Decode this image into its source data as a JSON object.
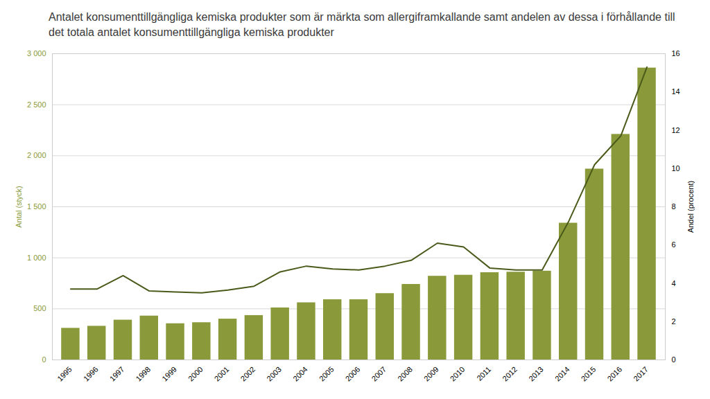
{
  "chart_data": {
    "type": "bar",
    "title": "Antalet konsumenttillgängliga kemiska produkter som är märkta som allergiframkallande samt andelen av dessa i förhållande till det totala antalet konsumenttillgängliga kemiska produkter",
    "x": [
      1995,
      1996,
      1997,
      1998,
      1999,
      2000,
      2001,
      2002,
      2003,
      2004,
      2005,
      2006,
      2007,
      2008,
      2009,
      2010,
      2011,
      2012,
      2013,
      2014,
      2015,
      2016,
      2017
    ],
    "xlim": [
      1994.3,
      2017.7
    ],
    "xticks": [
      1995,
      1996,
      1997,
      1998,
      1999,
      2000,
      2001,
      2002,
      2003,
      2004,
      2005,
      2006,
      2007,
      2008,
      2009,
      2010,
      2011,
      2012,
      2013,
      2014,
      2015,
      2016,
      2017
    ],
    "series": [
      {
        "type": "bar",
        "color": "#8a9a3a",
        "values": [
          310,
          330,
          390,
          430,
          355,
          365,
          400,
          435,
          510,
          560,
          590,
          590,
          650,
          740,
          820,
          830,
          855,
          860,
          870,
          1340,
          1870,
          2210,
          2860
        ]
      },
      {
        "type": "line",
        "color": "#4a5a1a",
        "axis": "y2",
        "values": [
          3.7,
          3.7,
          4.4,
          3.6,
          3.55,
          3.5,
          3.65,
          3.85,
          4.6,
          4.9,
          4.75,
          4.7,
          4.9,
          5.2,
          6.1,
          5.9,
          4.8,
          4.7,
          4.7,
          7.2,
          10.2,
          11.7,
          15.3
        ]
      }
    ],
    "ylabel": "Antal (styck)",
    "y2label": "Andel (procent)",
    "ylim": [
      0,
      3000
    ],
    "yticks": [
      0,
      500,
      {
        "value": 1000,
        "label": "1 000"
      },
      {
        "value": 1500,
        "label": "1 500"
      },
      {
        "value": 2000,
        "label": "2 000"
      },
      {
        "value": 2500,
        "label": "2 500"
      },
      {
        "value": 3000,
        "label": "3 000"
      }
    ],
    "y2lim": [
      0,
      16
    ],
    "y2ticks": [
      0,
      2,
      4,
      6,
      8,
      10,
      12,
      14,
      16
    ],
    "grid": true
  }
}
